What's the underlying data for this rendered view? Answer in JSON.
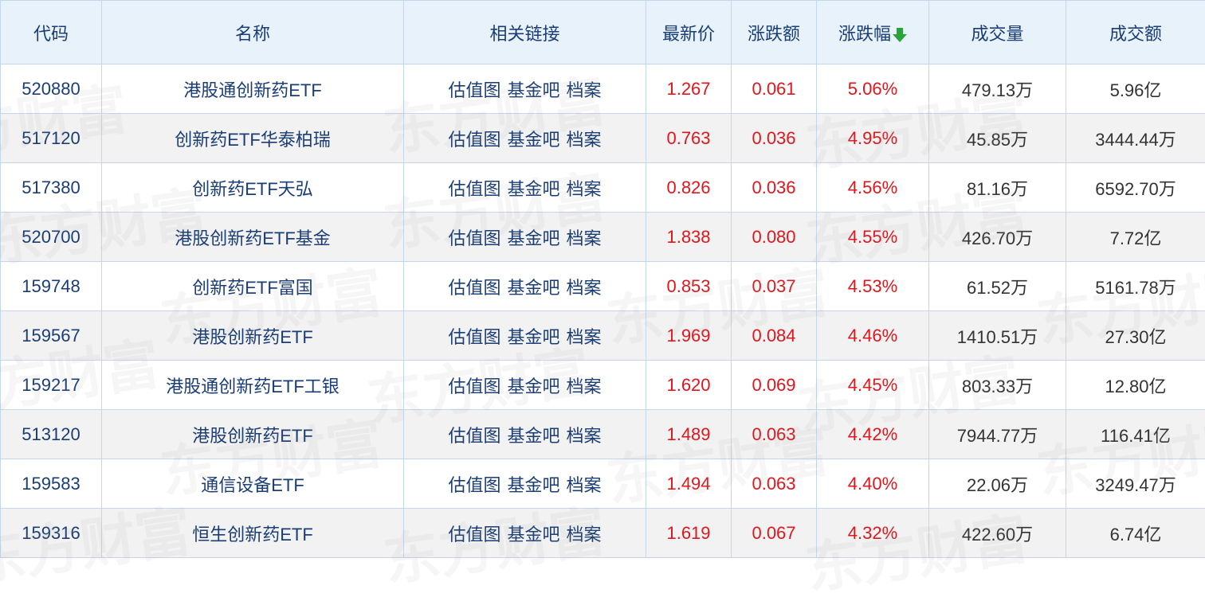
{
  "watermark": "东方财富",
  "colors": {
    "header_bg": "#e8f2fb",
    "header_text": "#1a3d75",
    "up": "#e0161c",
    "sort_arrow": "#2aa33a"
  },
  "headers": [
    "代码",
    "名称",
    "相关链接",
    "最新价",
    "涨跌额",
    "涨跌幅",
    "成交量",
    "成交额"
  ],
  "sort": {
    "column": "涨跌幅",
    "direction": "desc",
    "icon": "arrow-down-icon"
  },
  "links": [
    "估值图",
    "基金吧",
    "档案"
  ],
  "rows": [
    {
      "code": "520880",
      "name": "港股通创新药ETF",
      "price": "1.267",
      "change": "0.061",
      "pct": "5.06%",
      "volume": "479.13万",
      "amount": "5.96亿"
    },
    {
      "code": "517120",
      "name": "创新药ETF华泰柏瑞",
      "price": "0.763",
      "change": "0.036",
      "pct": "4.95%",
      "volume": "45.85万",
      "amount": "3444.44万"
    },
    {
      "code": "517380",
      "name": "创新药ETF天弘",
      "price": "0.826",
      "change": "0.036",
      "pct": "4.56%",
      "volume": "81.16万",
      "amount": "6592.70万"
    },
    {
      "code": "520700",
      "name": "港股创新药ETF基金",
      "price": "1.838",
      "change": "0.080",
      "pct": "4.55%",
      "volume": "426.70万",
      "amount": "7.72亿"
    },
    {
      "code": "159748",
      "name": "创新药ETF富国",
      "price": "0.853",
      "change": "0.037",
      "pct": "4.53%",
      "volume": "61.52万",
      "amount": "5161.78万"
    },
    {
      "code": "159567",
      "name": "港股创新药ETF",
      "price": "1.969",
      "change": "0.084",
      "pct": "4.46%",
      "volume": "1410.51万",
      "amount": "27.30亿"
    },
    {
      "code": "159217",
      "name": "港股通创新药ETF工银",
      "price": "1.620",
      "change": "0.069",
      "pct": "4.45%",
      "volume": "803.33万",
      "amount": "12.80亿"
    },
    {
      "code": "513120",
      "name": "港股创新药ETF",
      "price": "1.489",
      "change": "0.063",
      "pct": "4.42%",
      "volume": "7944.77万",
      "amount": "116.41亿"
    },
    {
      "code": "159583",
      "name": "通信设备ETF",
      "price": "1.494",
      "change": "0.063",
      "pct": "4.40%",
      "volume": "22.06万",
      "amount": "3249.47万"
    },
    {
      "code": "159316",
      "name": "恒生创新药ETF",
      "price": "1.619",
      "change": "0.067",
      "pct": "4.32%",
      "volume": "422.60万",
      "amount": "6.74亿"
    }
  ]
}
